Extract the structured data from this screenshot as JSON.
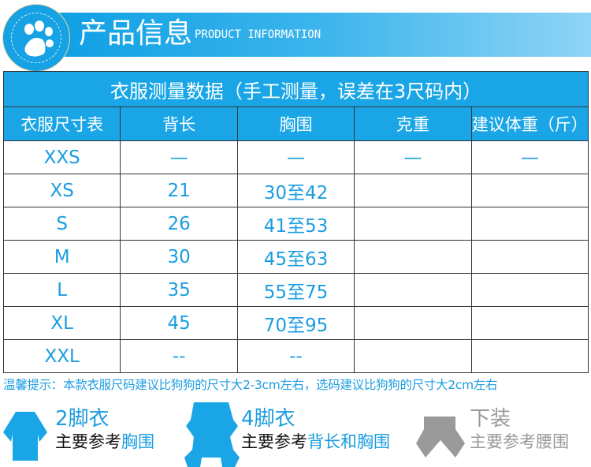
{
  "header": {
    "title_cn": "产品信息",
    "title_en": "PRODUCT INFORMATION"
  },
  "table": {
    "caption": "衣服测量数据（手工测量，误差在3尺码内）",
    "columns": [
      "衣服尺寸表",
      "背长",
      "胸围",
      "克重",
      "建议体重（斤）"
    ],
    "rows": [
      [
        "XXS",
        "—",
        "—",
        "—",
        "—"
      ],
      [
        "XS",
        "21",
        "30至42",
        "",
        ""
      ],
      [
        "S",
        "26",
        "41至53",
        "",
        ""
      ],
      [
        "M",
        "30",
        "45至63",
        "",
        ""
      ],
      [
        "L",
        "35",
        "55至75",
        "",
        ""
      ],
      [
        "XL",
        "45",
        "70至95",
        "",
        ""
      ],
      [
        "XXL",
        "--",
        "--",
        "",
        ""
      ]
    ]
  },
  "note": "温馨提示：本款衣服尺码建议比狗狗的尺寸大2-3cm左右，选码建议比狗狗的尺寸大2cm左右",
  "legend": [
    {
      "title": "2脚衣",
      "prefix": "主要参考",
      "suffix": "胸围"
    },
    {
      "title": "4脚衣",
      "prefix": "主要参考",
      "suffix": "背长和胸围"
    },
    {
      "title": "下装",
      "prefix": "主要参考",
      "suffix": "腰围"
    }
  ],
  "colors": {
    "accent": "#1aa6e6",
    "grey": "#9a9a9a"
  }
}
